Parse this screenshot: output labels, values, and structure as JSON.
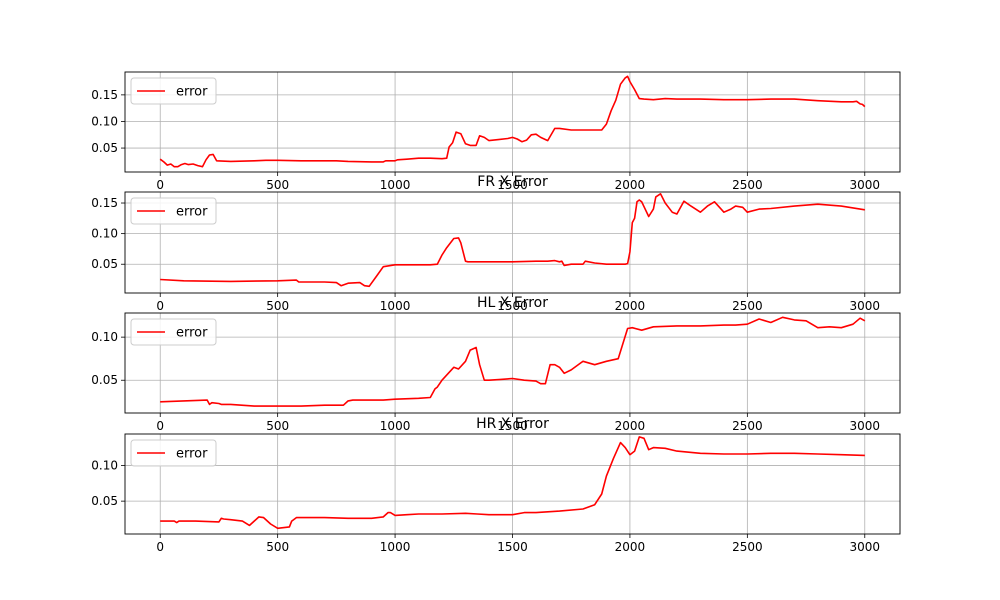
{
  "chart_data": [
    {
      "type": "line",
      "title": "",
      "xlim": [
        -150,
        3150
      ],
      "ylim": [
        0.005,
        0.193
      ],
      "xticks": [
        "0",
        "500",
        "1000",
        "1500",
        "2000",
        "2500",
        "3000"
      ],
      "yticks": [
        "0.05",
        "0.10",
        "0.15"
      ],
      "grid": true,
      "legend_position": "top-left",
      "series": [
        {
          "name": "error",
          "color": "#ff0000",
          "x": [
            0,
            15,
            30,
            45,
            60,
            75,
            90,
            105,
            120,
            140,
            160,
            180,
            195,
            210,
            225,
            240,
            300,
            400,
            450,
            500,
            600,
            700,
            750,
            800,
            900,
            950,
            960,
            1000,
            1010,
            1050,
            1100,
            1150,
            1200,
            1220,
            1230,
            1245,
            1260,
            1280,
            1300,
            1320,
            1345,
            1360,
            1380,
            1400,
            1440,
            1480,
            1500,
            1520,
            1540,
            1560,
            1580,
            1600,
            1620,
            1650,
            1680,
            1700,
            1750,
            1800,
            1850,
            1880,
            1900,
            1920,
            1940,
            1960,
            1980,
            1990,
            2000,
            2020,
            2040,
            2060,
            2100,
            2150,
            2200,
            2300,
            2400,
            2500,
            2600,
            2700,
            2800,
            2900,
            2950,
            2965,
            2980,
            2990,
            3000
          ],
          "y": [
            0.029,
            0.024,
            0.018,
            0.02,
            0.015,
            0.015,
            0.019,
            0.021,
            0.019,
            0.02,
            0.017,
            0.015,
            0.028,
            0.037,
            0.038,
            0.026,
            0.025,
            0.026,
            0.027,
            0.027,
            0.026,
            0.026,
            0.026,
            0.025,
            0.024,
            0.024,
            0.026,
            0.026,
            0.028,
            0.029,
            0.031,
            0.031,
            0.03,
            0.031,
            0.052,
            0.06,
            0.08,
            0.077,
            0.058,
            0.055,
            0.055,
            0.073,
            0.07,
            0.064,
            0.066,
            0.068,
            0.07,
            0.067,
            0.062,
            0.065,
            0.075,
            0.076,
            0.07,
            0.064,
            0.087,
            0.087,
            0.084,
            0.084,
            0.084,
            0.084,
            0.095,
            0.12,
            0.14,
            0.17,
            0.182,
            0.185,
            0.175,
            0.16,
            0.143,
            0.142,
            0.141,
            0.143,
            0.142,
            0.142,
            0.141,
            0.141,
            0.142,
            0.142,
            0.139,
            0.137,
            0.137,
            0.138,
            0.133,
            0.132,
            0.128
          ]
        }
      ]
    },
    {
      "type": "line",
      "title": "FR X Error",
      "xlim": [
        -150,
        3150
      ],
      "ylim": [
        0.003,
        0.168
      ],
      "xticks": [
        "0",
        "500",
        "1000",
        "1500",
        "2000",
        "2500",
        "3000"
      ],
      "yticks": [
        "0.05",
        "0.10",
        "0.15"
      ],
      "grid": true,
      "legend_position": "top-left",
      "series": [
        {
          "name": "error",
          "color": "#ff0000",
          "x": [
            0,
            100,
            300,
            500,
            580,
            590,
            700,
            750,
            770,
            800,
            850,
            870,
            890,
            920,
            950,
            1000,
            1100,
            1150,
            1180,
            1200,
            1220,
            1250,
            1270,
            1280,
            1300,
            1310,
            1400,
            1500,
            1600,
            1650,
            1680,
            1700,
            1710,
            1720,
            1750,
            1800,
            1810,
            1850,
            1900,
            1980,
            1990,
            2000,
            2010,
            2020,
            2030,
            2040,
            2050,
            2080,
            2100,
            2110,
            2130,
            2150,
            2180,
            2200,
            2230,
            2260,
            2300,
            2330,
            2360,
            2400,
            2430,
            2450,
            2480,
            2500,
            2550,
            2600,
            2700,
            2800,
            2900,
            3000
          ],
          "y": [
            0.025,
            0.023,
            0.022,
            0.023,
            0.024,
            0.021,
            0.021,
            0.02,
            0.015,
            0.019,
            0.02,
            0.015,
            0.014,
            0.03,
            0.046,
            0.049,
            0.049,
            0.049,
            0.05,
            0.065,
            0.077,
            0.092,
            0.093,
            0.085,
            0.055,
            0.054,
            0.054,
            0.054,
            0.055,
            0.055,
            0.056,
            0.054,
            0.055,
            0.048,
            0.05,
            0.05,
            0.055,
            0.052,
            0.05,
            0.05,
            0.051,
            0.07,
            0.118,
            0.125,
            0.152,
            0.155,
            0.152,
            0.128,
            0.14,
            0.16,
            0.165,
            0.15,
            0.135,
            0.132,
            0.153,
            0.145,
            0.135,
            0.145,
            0.152,
            0.135,
            0.14,
            0.145,
            0.143,
            0.135,
            0.14,
            0.141,
            0.145,
            0.148,
            0.145,
            0.139
          ]
        }
      ]
    },
    {
      "type": "line",
      "title": "HL X Error",
      "xlim": [
        -150,
        3150
      ],
      "ylim": [
        0.012,
        0.128
      ],
      "xticks": [
        "0",
        "500",
        "1000",
        "1500",
        "2000",
        "2500",
        "3000"
      ],
      "yticks": [
        "0.05",
        "0.10"
      ],
      "grid": true,
      "legend_position": "top-left",
      "series": [
        {
          "name": "error",
          "color": "#ff0000",
          "x": [
            0,
            100,
            200,
            210,
            220,
            250,
            260,
            300,
            400,
            500,
            600,
            700,
            780,
            800,
            820,
            900,
            950,
            1000,
            1100,
            1150,
            1170,
            1180,
            1200,
            1250,
            1270,
            1300,
            1320,
            1345,
            1360,
            1380,
            1400,
            1450,
            1500,
            1550,
            1600,
            1620,
            1640,
            1660,
            1680,
            1700,
            1720,
            1750,
            1790,
            1800,
            1850,
            1900,
            1950,
            1990,
            2010,
            2050,
            2100,
            2200,
            2300,
            2400,
            2450,
            2500,
            2550,
            2600,
            2650,
            2700,
            2750,
            2800,
            2850,
            2900,
            2950,
            2980,
            3000
          ],
          "y": [
            0.025,
            0.026,
            0.027,
            0.022,
            0.024,
            0.023,
            0.022,
            0.022,
            0.02,
            0.02,
            0.02,
            0.021,
            0.021,
            0.026,
            0.027,
            0.027,
            0.027,
            0.028,
            0.029,
            0.03,
            0.04,
            0.042,
            0.05,
            0.065,
            0.063,
            0.072,
            0.085,
            0.088,
            0.068,
            0.05,
            0.05,
            0.051,
            0.052,
            0.05,
            0.049,
            0.046,
            0.046,
            0.068,
            0.068,
            0.065,
            0.058,
            0.062,
            0.07,
            0.072,
            0.068,
            0.072,
            0.075,
            0.11,
            0.111,
            0.108,
            0.112,
            0.113,
            0.113,
            0.114,
            0.114,
            0.115,
            0.121,
            0.117,
            0.123,
            0.12,
            0.119,
            0.111,
            0.112,
            0.111,
            0.115,
            0.122,
            0.119
          ]
        }
      ]
    },
    {
      "type": "line",
      "title": "HR X Error",
      "xlim": [
        -150,
        3150
      ],
      "ylim": [
        0.004,
        0.144
      ],
      "xticks": [
        "0",
        "500",
        "1000",
        "1500",
        "2000",
        "2500",
        "3000"
      ],
      "yticks": [
        "0.05",
        "0.10"
      ],
      "grid": true,
      "legend_position": "top-left",
      "series": [
        {
          "name": "error",
          "color": "#ff0000",
          "x": [
            0,
            60,
            70,
            80,
            150,
            250,
            260,
            270,
            300,
            350,
            380,
            400,
            420,
            440,
            470,
            500,
            550,
            560,
            580,
            600,
            700,
            800,
            850,
            900,
            950,
            970,
            980,
            1000,
            1050,
            1100,
            1200,
            1300,
            1350,
            1400,
            1450,
            1500,
            1550,
            1600,
            1700,
            1800,
            1850,
            1880,
            1900,
            1930,
            1960,
            1980,
            2000,
            2020,
            2040,
            2060,
            2080,
            2100,
            2150,
            2200,
            2300,
            2400,
            2500,
            2600,
            2700,
            2800,
            2900,
            3000
          ],
          "y": [
            0.022,
            0.022,
            0.02,
            0.022,
            0.022,
            0.021,
            0.026,
            0.025,
            0.024,
            0.022,
            0.016,
            0.022,
            0.028,
            0.027,
            0.018,
            0.012,
            0.014,
            0.022,
            0.027,
            0.027,
            0.027,
            0.026,
            0.026,
            0.026,
            0.028,
            0.034,
            0.034,
            0.03,
            0.031,
            0.032,
            0.032,
            0.033,
            0.032,
            0.031,
            0.031,
            0.031,
            0.034,
            0.034,
            0.036,
            0.039,
            0.045,
            0.06,
            0.085,
            0.11,
            0.132,
            0.125,
            0.115,
            0.12,
            0.14,
            0.138,
            0.122,
            0.125,
            0.124,
            0.12,
            0.117,
            0.116,
            0.116,
            0.117,
            0.117,
            0.116,
            0.115,
            0.114
          ]
        }
      ]
    }
  ]
}
